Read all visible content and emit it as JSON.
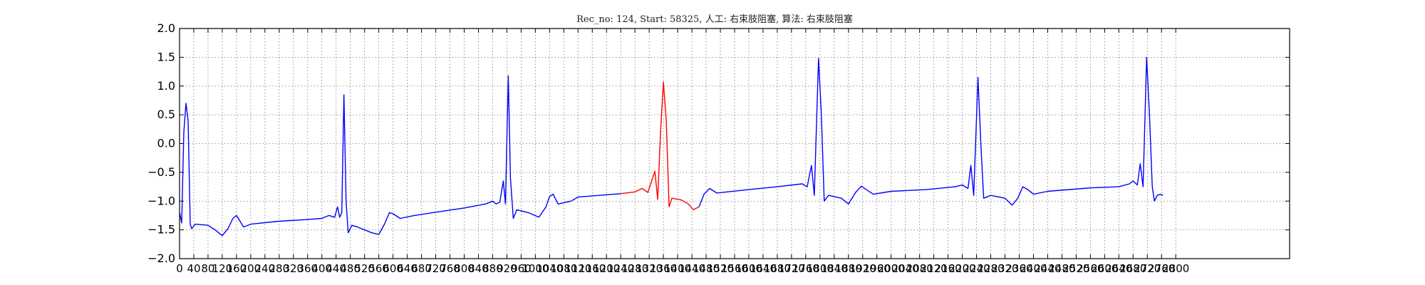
{
  "chart_data": {
    "type": "line",
    "title": "Rec_no: 124, Start: 58325, 人工: 右束肢阻塞, 算法: 右束肢阻塞",
    "xlabel": "",
    "ylabel": "",
    "xlim": [
      0,
      1560
    ],
    "ylim": [
      -2.0,
      2.0
    ],
    "grid": true,
    "yticks": [
      2.0,
      1.5,
      1.0,
      0.5,
      0.0,
      -0.5,
      -1.0,
      -1.5,
      -2.0
    ],
    "ytick_labels": [
      "2.0",
      "1.5",
      "1.0",
      "0.5",
      "0.0",
      "−0.5",
      "−1.0",
      "−1.5",
      "−2.0"
    ],
    "xticks": [
      0,
      20,
      40,
      60,
      80,
      100,
      120,
      140,
      160,
      180,
      200,
      220,
      240,
      260,
      280,
      300,
      320,
      340,
      360,
      380,
      400,
      420,
      440,
      460,
      480,
      500,
      520,
      540,
      560,
      580,
      600,
      620,
      640,
      660,
      680,
      700,
      720,
      740,
      760,
      780,
      800,
      820,
      840,
      860,
      880,
      900,
      920,
      940,
      960,
      980,
      1000,
      1020,
      1040,
      1060,
      1080,
      1100,
      1120,
      1140,
      1160,
      1180,
      1200,
      1220,
      1240,
      1260,
      1280,
      1300,
      1320,
      1340,
      1360,
      1380,
      1400
    ],
    "xtick_labels": [
      "0",
      "40",
      "80",
      "120",
      "160",
      "200",
      "240",
      "280",
      "320",
      "360",
      "400",
      "440",
      "480",
      "520",
      "560",
      "600",
      "640",
      "680",
      "720",
      "760",
      "800",
      "840",
      "880",
      "920",
      "960",
      "1000",
      "1040",
      "1080",
      "1120",
      "1160",
      "1200",
      "1240",
      "1280",
      "1320",
      "1360",
      "1400",
      "1440",
      "1480",
      "1520",
      "1560",
      "1600",
      "1640",
      "1680",
      "1720",
      "1760",
      "1800",
      "1840",
      "1880",
      "1920",
      "1960",
      "2000",
      "2040",
      "2080",
      "2120",
      "2160",
      "2200",
      "2240",
      "2280",
      "2320",
      "2360",
      "2400",
      "2440",
      "2480",
      "2520",
      "2560",
      "2600",
      "2640",
      "2680",
      "2720",
      "2760",
      "2800"
    ],
    "series": [
      {
        "color": "#0000ff",
        "points": [
          [
            0,
            -1.2
          ],
          [
            3,
            -1.38
          ],
          [
            6,
            0.2
          ],
          [
            9,
            0.7
          ],
          [
            12,
            0.4
          ],
          [
            15,
            -1.4
          ],
          [
            17,
            -1.48
          ],
          [
            22,
            -1.4
          ],
          [
            40,
            -1.42
          ],
          [
            50,
            -1.5
          ],
          [
            60,
            -1.6
          ],
          [
            68,
            -1.48
          ],
          [
            75,
            -1.3
          ],
          [
            80,
            -1.25
          ],
          [
            85,
            -1.35
          ],
          [
            90,
            -1.45
          ],
          [
            100,
            -1.4
          ],
          [
            140,
            -1.35
          ],
          [
            180,
            -1.32
          ],
          [
            200,
            -1.3
          ],
          [
            210,
            -1.25
          ],
          [
            218,
            -1.28
          ],
          [
            222,
            -1.1
          ],
          [
            225,
            -1.28
          ],
          [
            228,
            -1.2
          ],
          [
            231,
            0.85
          ],
          [
            234,
            -1.0
          ],
          [
            237,
            -1.55
          ],
          [
            242,
            -1.42
          ],
          [
            250,
            -1.45
          ],
          [
            270,
            -1.55
          ],
          [
            280,
            -1.58
          ],
          [
            288,
            -1.4
          ],
          [
            295,
            -1.2
          ],
          [
            300,
            -1.22
          ],
          [
            310,
            -1.3
          ],
          [
            330,
            -1.25
          ],
          [
            400,
            -1.12
          ],
          [
            430,
            -1.05
          ],
          [
            440,
            -1.0
          ],
          [
            445,
            -1.05
          ],
          [
            450,
            -1.02
          ],
          [
            455,
            -0.65
          ],
          [
            458,
            -1.05
          ],
          [
            462,
            1.18
          ],
          [
            465,
            -0.6
          ],
          [
            469,
            -1.3
          ],
          [
            474,
            -1.15
          ],
          [
            490,
            -1.2
          ],
          [
            505,
            -1.28
          ],
          [
            515,
            -1.1
          ],
          [
            520,
            -0.92
          ],
          [
            525,
            -0.88
          ],
          [
            532,
            -1.05
          ],
          [
            550,
            -1.0
          ],
          [
            560,
            -0.93
          ],
          [
            590,
            -0.9
          ],
          [
            620,
            -0.87
          ]
        ]
      },
      {
        "color": "#ff0000",
        "points": [
          [
            620,
            -0.87
          ],
          [
            640,
            -0.84
          ],
          [
            650,
            -0.78
          ],
          [
            658,
            -0.85
          ],
          [
            668,
            -0.48
          ],
          [
            672,
            -0.97
          ],
          [
            676,
            0.2
          ],
          [
            680,
            1.07
          ],
          [
            684,
            0.4
          ],
          [
            688,
            -1.1
          ],
          [
            692,
            -0.95
          ],
          [
            705,
            -0.98
          ],
          [
            715,
            -1.05
          ],
          [
            722,
            -1.15
          ],
          [
            730,
            -1.1
          ]
        ]
      },
      {
        "color": "#0000ff",
        "points": [
          [
            730,
            -1.1
          ],
          [
            737,
            -0.88
          ],
          [
            745,
            -0.78
          ],
          [
            755,
            -0.86
          ],
          [
            770,
            -0.84
          ],
          [
            800,
            -0.8
          ],
          [
            840,
            -0.75
          ],
          [
            875,
            -0.7
          ],
          [
            882,
            -0.75
          ],
          [
            888,
            -0.38
          ],
          [
            892,
            -0.9
          ],
          [
            898,
            1.48
          ],
          [
            902,
            0.5
          ],
          [
            906,
            -1.0
          ],
          [
            912,
            -0.9
          ],
          [
            930,
            -0.95
          ],
          [
            940,
            -1.05
          ],
          [
            950,
            -0.85
          ],
          [
            958,
            -0.74
          ],
          [
            965,
            -0.8
          ],
          [
            975,
            -0.88
          ],
          [
            1000,
            -0.83
          ],
          [
            1050,
            -0.8
          ],
          [
            1090,
            -0.75
          ],
          [
            1100,
            -0.72
          ],
          [
            1108,
            -0.78
          ],
          [
            1112,
            -0.38
          ],
          [
            1116,
            -0.9
          ],
          [
            1122,
            1.15
          ],
          [
            1126,
            0.0
          ],
          [
            1130,
            -0.95
          ],
          [
            1140,
            -0.9
          ],
          [
            1160,
            -0.95
          ],
          [
            1170,
            -1.07
          ],
          [
            1178,
            -0.95
          ],
          [
            1185,
            -0.75
          ],
          [
            1192,
            -0.8
          ],
          [
            1200,
            -0.88
          ],
          [
            1220,
            -0.83
          ],
          [
            1280,
            -0.77
          ],
          [
            1320,
            -0.75
          ],
          [
            1335,
            -0.7
          ],
          [
            1340,
            -0.65
          ],
          [
            1346,
            -0.72
          ],
          [
            1350,
            -0.35
          ],
          [
            1354,
            -0.75
          ],
          [
            1359,
            1.5
          ],
          [
            1363,
            0.5
          ],
          [
            1367,
            -0.75
          ],
          [
            1370,
            -1.0
          ],
          [
            1374,
            -0.9
          ],
          [
            1378,
            -0.88
          ],
          [
            1382,
            -0.9
          ]
        ]
      }
    ]
  }
}
